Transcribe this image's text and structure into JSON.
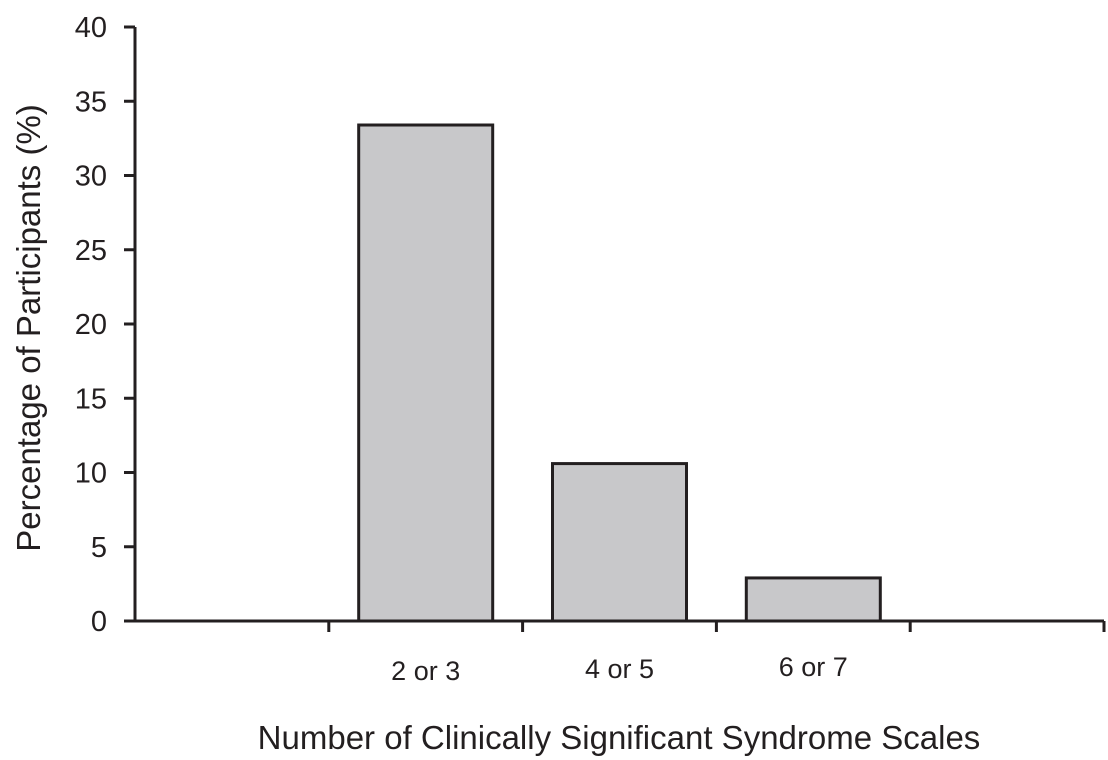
{
  "chart_data": {
    "type": "bar",
    "categories": [
      "",
      "2 or 3",
      "4 or 5",
      "6 or 7",
      ""
    ],
    "values": [
      null,
      33.4,
      10.6,
      2.9,
      null
    ],
    "xlabel": "Number of Clinically Significant Syndrome Scales",
    "ylabel": "Percentage of Participants (%)",
    "ylim": [
      0,
      40
    ],
    "yticks": [
      "0",
      "5",
      "10",
      "15",
      "20",
      "25",
      "30",
      "35",
      "40"
    ],
    "grid": false,
    "legend": "none",
    "colors": {
      "bar_fill": "#c8c8ca",
      "bar_stroke": "#231f20",
      "axis": "#231f20"
    }
  }
}
